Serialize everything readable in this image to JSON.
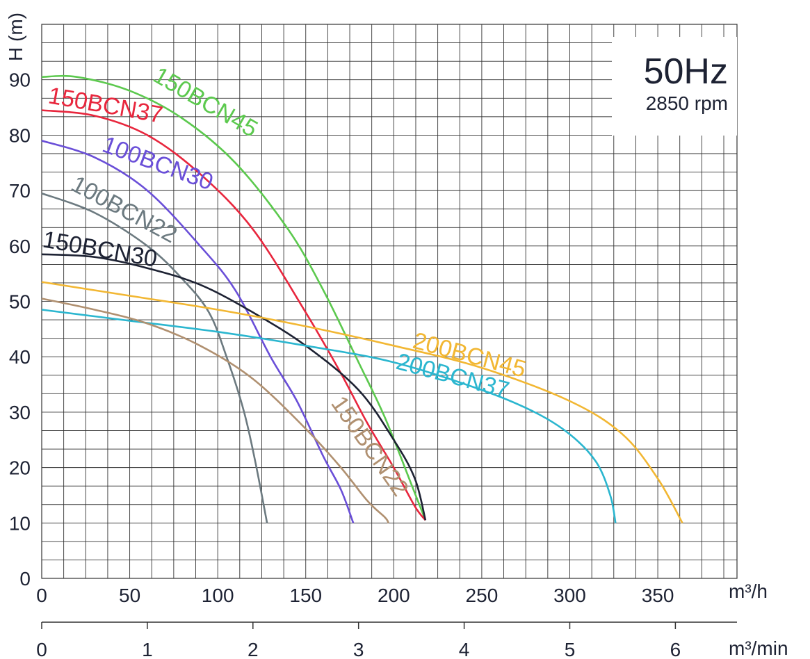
{
  "chart_data": {
    "type": "line",
    "frequency": "50Hz",
    "speed": "2850 rpm",
    "ylabel": "H (m)",
    "xlabel_primary": "m³/h",
    "xlabel_secondary": "m³/min",
    "xlim": [
      0,
      395
    ],
    "ylim": [
      0,
      100
    ],
    "grid": true,
    "y_ticks": [
      "0",
      "10",
      "20",
      "30",
      "40",
      "50",
      "60",
      "70",
      "80",
      "90"
    ],
    "x_ticks_primary": [
      "0",
      "50",
      "100",
      "150",
      "200",
      "250",
      "300",
      "350"
    ],
    "x_ticks_secondary": [
      "0",
      "1",
      "2",
      "3",
      "4",
      "5",
      "6"
    ],
    "series": [
      {
        "name": "150BCN45",
        "color": "#5cc94e",
        "x": [
          0,
          20,
          50,
          80,
          110,
          140,
          160,
          180,
          195,
          210,
          218
        ],
        "y": [
          90.5,
          90.5,
          88,
          83,
          75,
          63,
          52,
          39,
          29,
          17,
          10.5
        ]
      },
      {
        "name": "150BCN37",
        "color": "#e8263d",
        "x": [
          0,
          30,
          60,
          90,
          120,
          150,
          170,
          185,
          200,
          212,
          218
        ],
        "y": [
          84.5,
          83.5,
          80,
          73,
          63,
          48,
          37,
          28,
          20,
          13,
          10.5
        ]
      },
      {
        "name": "100BCN30",
        "color": "#6a4fd8",
        "x": [
          0,
          30,
          60,
          90,
          110,
          130,
          145,
          160,
          170,
          177
        ],
        "y": [
          79,
          76,
          70,
          60,
          52,
          40,
          32,
          22,
          16,
          10
        ]
      },
      {
        "name": "100BCN22",
        "color": "#6c7a80",
        "x": [
          0,
          30,
          60,
          80,
          95,
          105,
          115,
          122,
          128
        ],
        "y": [
          69.5,
          66,
          60,
          54,
          48,
          40,
          30,
          20,
          10
        ]
      },
      {
        "name": "150BCN30",
        "color": "#1d2233",
        "x": [
          0,
          30,
          60,
          90,
          120,
          150,
          180,
          200,
          212,
          218
        ],
        "y": [
          58.5,
          58,
          56,
          53,
          48,
          42,
          34,
          25,
          18,
          10.5
        ]
      },
      {
        "name": "200BCN45",
        "color": "#f2b733",
        "x": [
          0,
          50,
          100,
          150,
          200,
          250,
          300,
          330,
          350,
          364
        ],
        "y": [
          53.5,
          51,
          48.5,
          45.5,
          42,
          38,
          32,
          26,
          18,
          10
        ]
      },
      {
        "name": "200BCN37",
        "color": "#2bb6cf",
        "x": [
          0,
          50,
          100,
          150,
          200,
          250,
          280,
          300,
          315,
          323,
          326
        ],
        "y": [
          48.5,
          46.5,
          44.5,
          42,
          39,
          34,
          30,
          26,
          21,
          15,
          10
        ]
      },
      {
        "name": "150BCN22",
        "color": "#b09070",
        "x": [
          0,
          30,
          60,
          90,
          120,
          150,
          170,
          185,
          195,
          197
        ],
        "y": [
          50.5,
          48.5,
          46,
          42,
          36,
          27,
          20,
          14,
          11,
          10
        ]
      }
    ]
  }
}
